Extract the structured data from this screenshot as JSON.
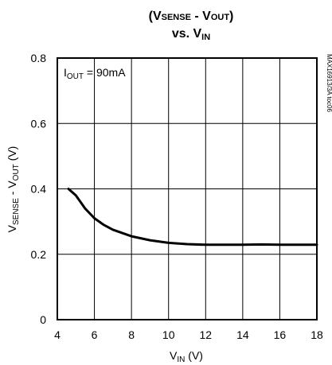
{
  "chart_data": {
    "type": "line",
    "title_line1": {
      "prefix": "(V",
      "sub1": "SENSE",
      "middle": " - V",
      "sub2": "OUT",
      "suffix": ")"
    },
    "title_line2": {
      "prefix": "vs. V",
      "sub": "IN"
    },
    "xlabel": {
      "main": "V",
      "sub": "IN",
      "unit": " (V)"
    },
    "ylabel": {
      "main1": "V",
      "sub1": "SENSE",
      "middle": " - V",
      "sub2": "OUT",
      "unit": " (V)"
    },
    "annotation": {
      "main": "I",
      "sub": "OUT",
      "value": " = 90mA"
    },
    "side_note": "MAX16913/3A toc06",
    "xlim": [
      4,
      18
    ],
    "ylim": [
      0,
      0.8
    ],
    "x_ticks": [
      4,
      6,
      8,
      10,
      12,
      14,
      16,
      18
    ],
    "x_tick_labels": [
      "4",
      "6",
      "8",
      "10",
      "12",
      "14",
      "16",
      "18"
    ],
    "y_ticks": [
      0,
      0.2,
      0.4,
      0.6,
      0.8
    ],
    "y_tick_labels": [
      "0",
      "0.2",
      "0.4",
      "0.6",
      "0.8"
    ],
    "grid": true,
    "series": [
      {
        "x": [
          4.6,
          5.0,
          5.5,
          6.0,
          6.5,
          7.0,
          8.0,
          9.0,
          10.0,
          11.0,
          12.0,
          13.0,
          14.0,
          15.0,
          16.0,
          17.0,
          18.0
        ],
        "values": [
          0.4,
          0.38,
          0.34,
          0.31,
          0.29,
          0.275,
          0.255,
          0.243,
          0.235,
          0.231,
          0.229,
          0.229,
          0.229,
          0.23,
          0.229,
          0.229,
          0.229
        ],
        "color": "#000000"
      }
    ]
  }
}
